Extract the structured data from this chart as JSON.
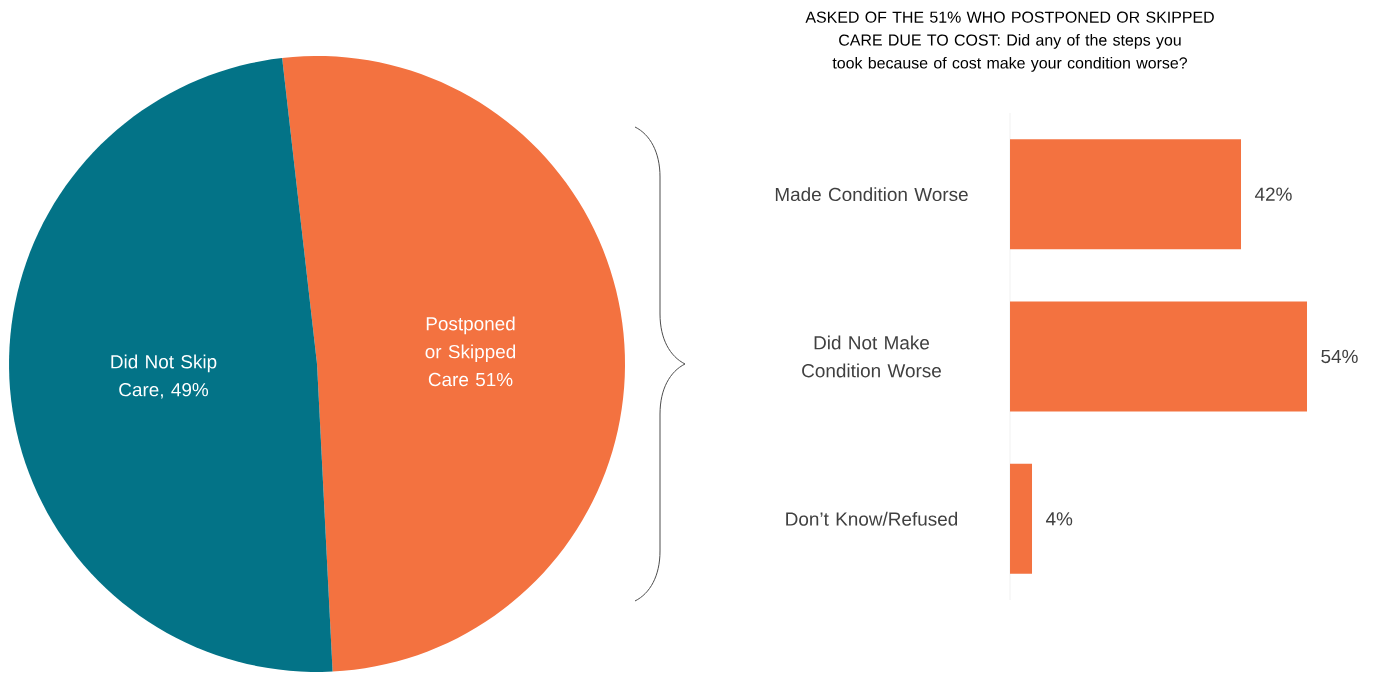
{
  "chart_data": [
    {
      "type": "pie",
      "categories": [
        "Postponed or Skipped Care 51%",
        "Did Not Skip Care, 49%"
      ],
      "values": [
        51,
        49
      ],
      "colors": [
        "#f37240",
        "#037387"
      ]
    },
    {
      "type": "bar",
      "orientation": "horizontal",
      "title": "ASKED OF THE 51% WHO POSTPONED OR SKIPPED CARE DUE TO COST: Did any of the steps you took because of cost make your condition worse?",
      "categories": [
        "Made Condition Worse",
        "Did Not Make Condition Worse",
        "Don’t Know/Refused"
      ],
      "values": [
        42,
        54,
        4
      ],
      "value_labels": [
        "42%",
        "54%",
        "4%"
      ],
      "color": "#f37240"
    }
  ]
}
